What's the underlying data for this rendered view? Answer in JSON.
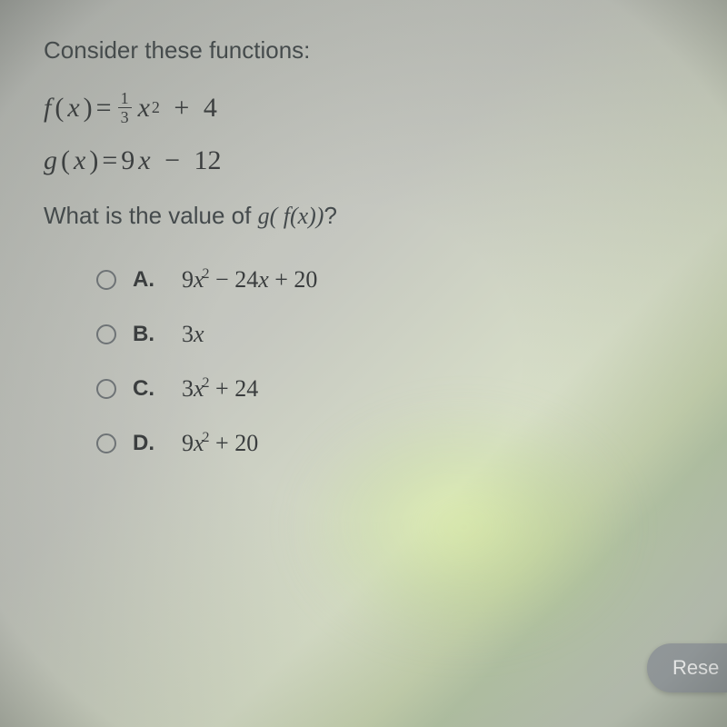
{
  "prompt": "Consider these functions:",
  "functions": {
    "f": {
      "lhs_var": "f",
      "arg": "x",
      "frac_num": "1",
      "frac_den": "3",
      "term1_var": "x",
      "term1_exp": "2",
      "op": "+",
      "term2": "4"
    },
    "g": {
      "lhs_var": "g",
      "arg": "x",
      "coef": "9",
      "var": "x",
      "op": "−",
      "const": "12"
    }
  },
  "question": {
    "pre": "What is the value of ",
    "expr": "g( f(x))",
    "post": "?"
  },
  "choices": [
    {
      "letter": "A.",
      "coef1": "9",
      "var1": "x",
      "exp1": "2",
      "mid": " − 24",
      "var2": "x",
      "tail": " + 20"
    },
    {
      "letter": "B.",
      "coef1": "3",
      "var1": "x",
      "exp1": "",
      "mid": "",
      "var2": "",
      "tail": ""
    },
    {
      "letter": "C.",
      "coef1": "3",
      "var1": "x",
      "exp1": "2",
      "mid": " + 24",
      "var2": "",
      "tail": ""
    },
    {
      "letter": "D.",
      "coef1": "9",
      "var1": "x",
      "exp1": "2",
      "mid": " + 20",
      "var2": "",
      "tail": ""
    }
  ],
  "button": {
    "label": "Rese"
  },
  "style": {
    "text_color": "#3a3d3e",
    "radio_border": "#707578",
    "button_bg": "#9aa0a3",
    "button_fg": "#ffffff",
    "prompt_fontsize": 26,
    "math_fontsize": 30,
    "choice_fontsize": 26
  }
}
